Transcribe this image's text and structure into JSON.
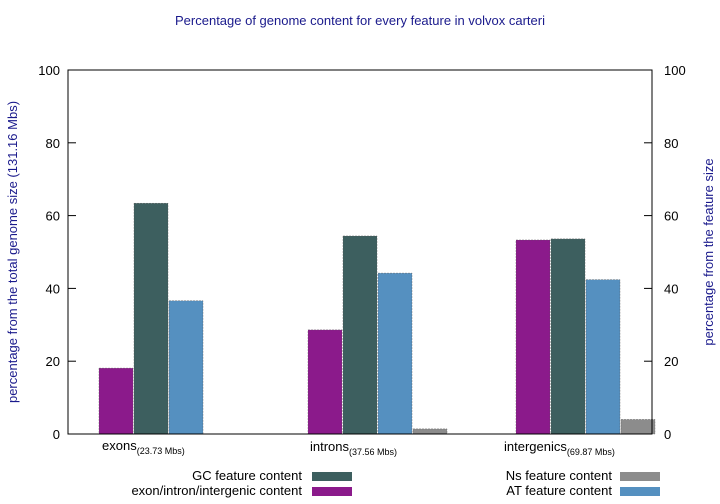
{
  "chart_data": {
    "type": "bar",
    "title": "Percentage of genome content for every feature in volvox carteri",
    "ylabel_left": "percentage from the total genome size (131.16 Mbs)",
    "ylabel_right": "percentage from the feature size",
    "ylim": [
      0,
      100
    ],
    "yticks": [
      0,
      20,
      40,
      60,
      80,
      100
    ],
    "grid": false,
    "legend_position": "bottom",
    "categories": [
      {
        "name": "exons",
        "sub": "(23.73 Mbs)"
      },
      {
        "name": "introns",
        "sub": "(37.56 Mbs)"
      },
      {
        "name": "intergenics",
        "sub": "(69.87 Mbs)"
      }
    ],
    "series": [
      {
        "name": "exon/intron/intergenic content",
        "color": "#8b1a8b",
        "values": [
          18.1,
          28.6,
          53.3
        ]
      },
      {
        "name": "GC feature content",
        "color": "#3d5f5f",
        "values": [
          63.4,
          54.4,
          53.6
        ]
      },
      {
        "name": "AT feature content",
        "color": "#5590c0",
        "values": [
          36.6,
          44.2,
          42.4
        ]
      },
      {
        "name": "Ns feature content",
        "color": "#8c8c8c",
        "values": [
          0.0,
          1.4,
          4.0
        ]
      }
    ]
  }
}
